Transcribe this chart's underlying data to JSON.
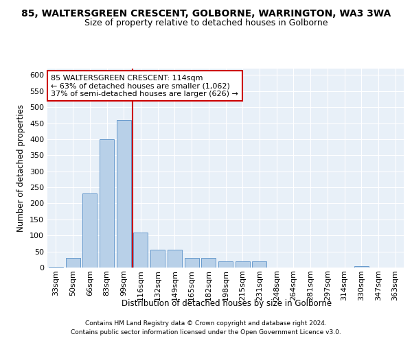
{
  "title1": "85, WALTERSGREEN CRESCENT, GOLBORNE, WARRINGTON, WA3 3WA",
  "title2": "Size of property relative to detached houses in Golborne",
  "xlabel": "Distribution of detached houses by size in Golborne",
  "ylabel": "Number of detached properties",
  "categories": [
    "33sqm",
    "50sqm",
    "66sqm",
    "83sqm",
    "99sqm",
    "116sqm",
    "132sqm",
    "149sqm",
    "165sqm",
    "182sqm",
    "198sqm",
    "215sqm",
    "231sqm",
    "248sqm",
    "264sqm",
    "281sqm",
    "297sqm",
    "314sqm",
    "330sqm",
    "347sqm",
    "363sqm"
  ],
  "bar_values": [
    2,
    30,
    230,
    400,
    460,
    110,
    55,
    55,
    30,
    30,
    20,
    20,
    20,
    0,
    0,
    0,
    0,
    0,
    5,
    0,
    0
  ],
  "bar_color": "#b8d0e8",
  "bar_edge_color": "#6699cc",
  "background_color": "#e8f0f8",
  "grid_color": "#ffffff",
  "vline_index": 5,
  "vline_color": "#cc0000",
  "ylim": [
    0,
    620
  ],
  "yticks": [
    0,
    50,
    100,
    150,
    200,
    250,
    300,
    350,
    400,
    450,
    500,
    550,
    600
  ],
  "annotation_text": "85 WALTERSGREEN CRESCENT: 114sqm\n← 63% of detached houses are smaller (1,062)\n37% of semi-detached houses are larger (626) →",
  "annotation_box_color": "#ffffff",
  "annotation_box_edge": "#cc0000",
  "footnote1": "Contains HM Land Registry data © Crown copyright and database right 2024.",
  "footnote2": "Contains public sector information licensed under the Open Government Licence v3.0.",
  "title1_fontsize": 10,
  "title2_fontsize": 9,
  "axis_label_fontsize": 8.5,
  "tick_fontsize": 8,
  "annotation_fontsize": 8,
  "footnote_fontsize": 6.5
}
